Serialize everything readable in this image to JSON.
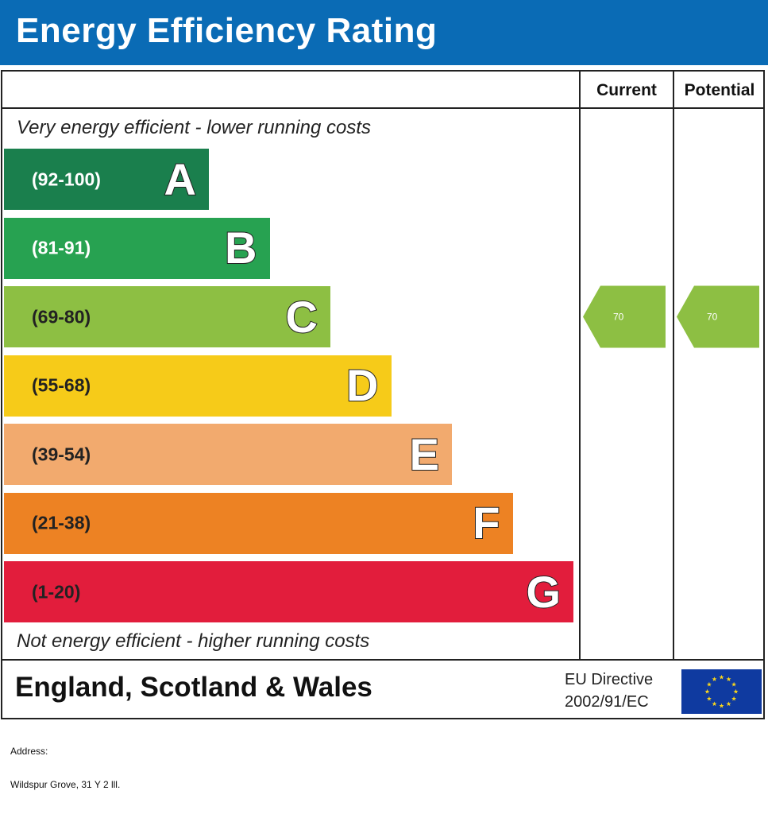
{
  "header": {
    "title": "Energy Efficiency Rating"
  },
  "columns": {
    "current": "Current",
    "potential": "Potential"
  },
  "notes": {
    "top": "Very energy efficient - lower running costs",
    "bottom": "Not energy efficient - higher running costs"
  },
  "chart_data": {
    "type": "bar",
    "title": "Energy Efficiency Rating",
    "bands": [
      {
        "letter": "A",
        "range": "(92-100)",
        "color": "#1a7f4d",
        "text_color": "#ffffff"
      },
      {
        "letter": "B",
        "range": "(81-91)",
        "color": "#27a251",
        "text_color": "#ffffff"
      },
      {
        "letter": "C",
        "range": "(69-80)",
        "color": "#8dbf43",
        "text_color": "#222222"
      },
      {
        "letter": "D",
        "range": "(55-68)",
        "color": "#f6cb19",
        "text_color": "#222222"
      },
      {
        "letter": "E",
        "range": "(39-54)",
        "color": "#f2aa6e",
        "text_color": "#222222"
      },
      {
        "letter": "F",
        "range": "(21-38)",
        "color": "#ed8223",
        "text_color": "#222222"
      },
      {
        "letter": "G",
        "range": "(1-20)",
        "color": "#e21d3c",
        "text_color": "#222222"
      }
    ],
    "current": {
      "value": 70,
      "label": "70",
      "band": "C",
      "color": "#8dbf43"
    },
    "potential": {
      "value": 70,
      "label": "70",
      "band": "C",
      "color": "#8dbf43"
    }
  },
  "footer": {
    "region": "England, Scotland & Wales",
    "directive_line1": "EU Directive",
    "directive_line2": "2002/91/EC"
  },
  "address": {
    "label": "Address:",
    "value": "Wildspur Grove, 31 Y 2 lll."
  }
}
